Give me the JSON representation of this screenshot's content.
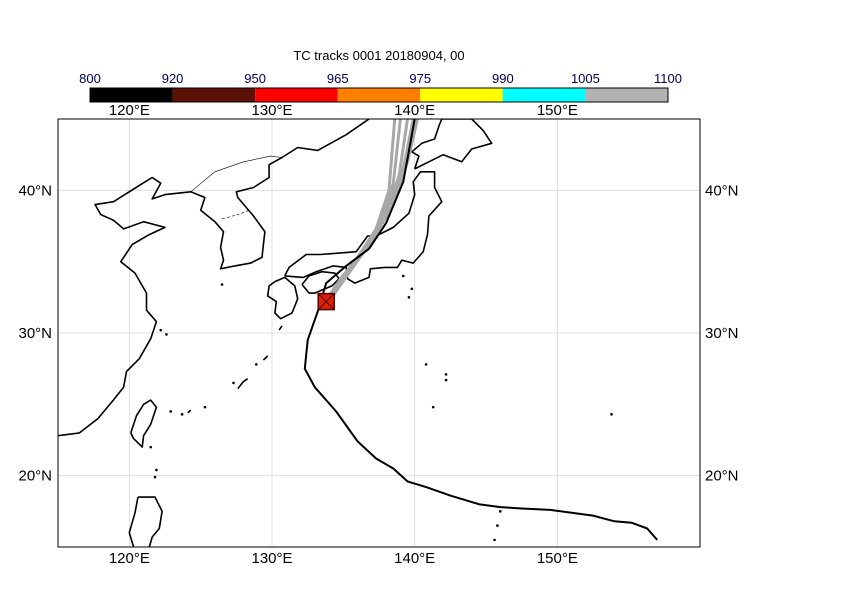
{
  "title": "TC tracks  0001 20180904, 00",
  "colorbar": {
    "boundaries": [
      "800",
      "920",
      "950",
      "965",
      "975",
      "990",
      "1005",
      "1100"
    ],
    "colors": [
      "#000000",
      "#5a1005",
      "#ff0000",
      "#ff8000",
      "#ffff00",
      "#00ffff",
      "#b2b2b2"
    ]
  },
  "map": {
    "lon_range": [
      115,
      160
    ],
    "lat_range": [
      15,
      45
    ],
    "lon_ticks": [
      "120°E",
      "130°E",
      "140°E",
      "150°E"
    ],
    "lat_ticks": [
      "20°N",
      "30°N",
      "40°N"
    ],
    "grid": true,
    "observed_track": [
      [
        157,
        15.5
      ],
      [
        156.3,
        16.3
      ],
      [
        155.2,
        16.7
      ],
      [
        154,
        16.8
      ],
      [
        152.5,
        17.2
      ],
      [
        151,
        17.4
      ],
      [
        149.5,
        17.6
      ],
      [
        147.5,
        17.7
      ],
      [
        146,
        17.8
      ],
      [
        144.5,
        18.0
      ],
      [
        142.5,
        18.6
      ],
      [
        140.8,
        19.2
      ],
      [
        139.5,
        19.6
      ],
      [
        138.5,
        20.5
      ],
      [
        137.3,
        21.2
      ],
      [
        136,
        22.4
      ],
      [
        134.5,
        24.5
      ],
      [
        133,
        26.2
      ],
      [
        132.3,
        27.5
      ],
      [
        132.5,
        29.5
      ],
      [
        133.2,
        31.5
      ],
      [
        133.8,
        33.5
      ],
      [
        135.2,
        34.7
      ],
      [
        136.8,
        35.9
      ],
      [
        138.0,
        37.7
      ],
      [
        139.2,
        40.6
      ],
      [
        140.0,
        45
      ]
    ],
    "ensemble_tracks": [
      [
        [
          133.8,
          32.3
        ],
        [
          134.8,
          33.8
        ],
        [
          136.0,
          35.3
        ],
        [
          137.3,
          37.3
        ],
        [
          138.2,
          40.0
        ],
        [
          138.6,
          45
        ]
      ],
      [
        [
          133.9,
          32.4
        ],
        [
          135.0,
          34.0
        ],
        [
          136.3,
          35.6
        ],
        [
          137.6,
          37.6
        ],
        [
          138.5,
          40.5
        ],
        [
          139.0,
          45
        ]
      ],
      [
        [
          134.0,
          32.4
        ],
        [
          135.2,
          34.2
        ],
        [
          136.6,
          36.0
        ],
        [
          137.9,
          38.2
        ],
        [
          138.9,
          41.0
        ],
        [
          139.5,
          45
        ]
      ],
      [
        [
          134.1,
          32.5
        ],
        [
          135.4,
          34.4
        ],
        [
          136.9,
          36.3
        ],
        [
          138.2,
          38.6
        ],
        [
          139.2,
          41.5
        ],
        [
          139.9,
          45
        ]
      ],
      [
        [
          134.2,
          32.5
        ],
        [
          135.6,
          34.5
        ],
        [
          137.1,
          36.6
        ],
        [
          138.5,
          39.0
        ],
        [
          139.5,
          42.0
        ],
        [
          140.2,
          45
        ]
      ]
    ],
    "position_marker": {
      "lon": 133.8,
      "lat": 32.2,
      "fill": "#dd2200",
      "border": "#550000"
    }
  }
}
